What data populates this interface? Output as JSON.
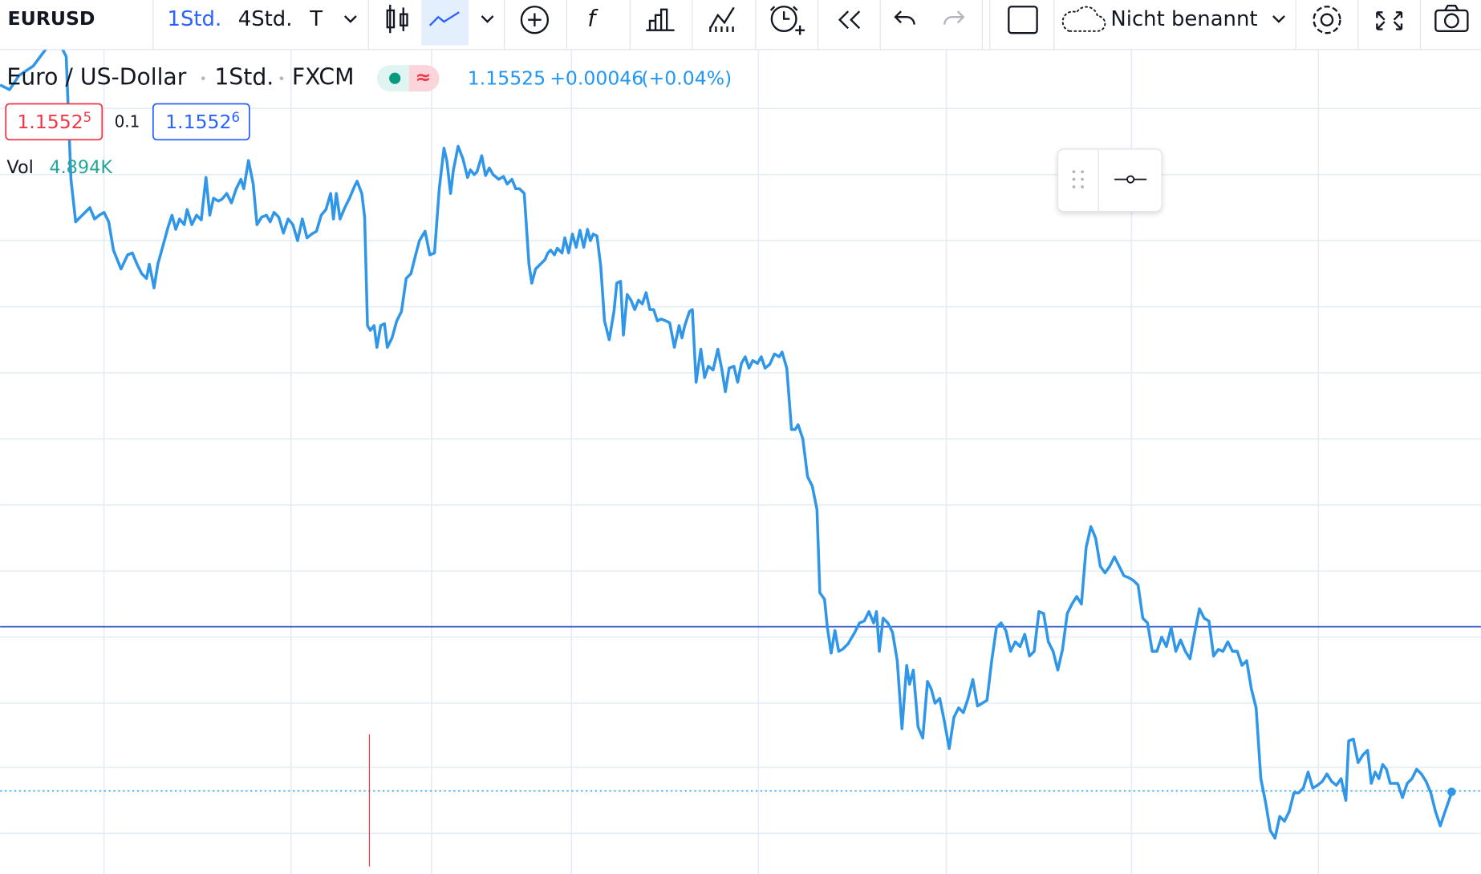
{
  "toolbar": {
    "symbol": "EURUSD",
    "intervals": [
      "1Std.",
      "4Std.",
      "T"
    ],
    "layout_name": "Nicht benannt"
  },
  "legend": {
    "title": "Euro / US-Dollar",
    "interval": "1Std.",
    "exchange": "FXCM",
    "last": "1.15525",
    "change": "+0.00046",
    "change_pct": "(+0.04%)",
    "bid": {
      "main": "1.1552",
      "pip": "5"
    },
    "spread": "0.1",
    "ask": {
      "main": "1.1552",
      "pip": "6"
    },
    "volume": {
      "label": "Vol",
      "value": "4.894K"
    }
  }
}
